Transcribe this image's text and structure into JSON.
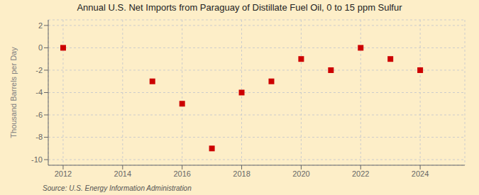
{
  "chart_data": {
    "type": "scatter",
    "title": "Annual U.S. Net Imports from Paraguay of Distillate Fuel Oil, 0 to 15 ppm Sulfur",
    "y_label": "Thousand Barrels per Day",
    "annotations": [
      "Source: U.S. Energy Information Administration"
    ],
    "x": [
      2012,
      2015,
      2016,
      2017,
      2018,
      2019,
      2020,
      2021,
      2022,
      2023,
      2024
    ],
    "values": [
      0.0,
      -3.0,
      -5.0,
      -9.0,
      -4.0,
      -3.0,
      -1.0,
      -2.0,
      0.0,
      -1.0,
      -2.0
    ],
    "color": "#cc0000",
    "marker": "square",
    "xlim": [
      2011.5,
      2025.5
    ],
    "ylim": [
      -10.5,
      2.5
    ],
    "xticks": [
      2012,
      2014,
      2016,
      2018,
      2020,
      2022,
      2024
    ],
    "yticks": [
      2,
      0,
      -2,
      -4,
      -6,
      -8,
      -10
    ],
    "grid": true
  }
}
